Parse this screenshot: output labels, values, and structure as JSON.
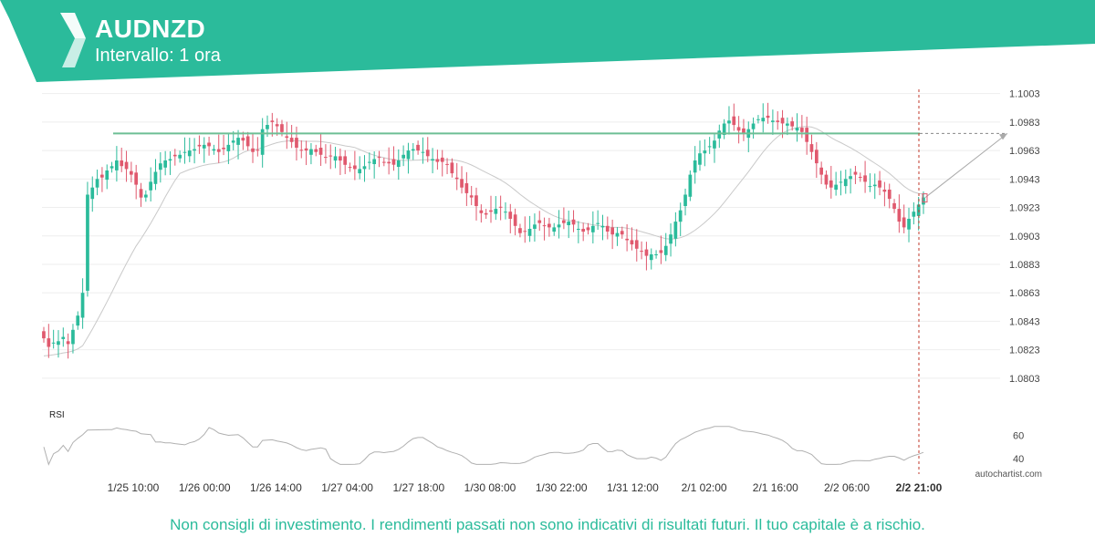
{
  "header": {
    "symbol": "AUDNZD",
    "interval": "Intervallo: 1 ora"
  },
  "colors": {
    "brand": "#2bbb9b",
    "up": "#2bbb9b",
    "down": "#e0596e",
    "resistance": "#6dbf95",
    "ma": "#c9c9c9",
    "rsi": "#b0b0b0"
  },
  "chart_data": {
    "type": "candlestick",
    "symbol": "AUDNZD",
    "yticks": [
      "1.1003",
      "1.0983",
      "1.0963",
      "1.0943",
      "1.0923",
      "1.0903",
      "1.0883",
      "1.0863",
      "1.0843",
      "1.0823",
      "1.0803"
    ],
    "ylim": [
      1.0792,
      1.1006
    ],
    "xticks": [
      "1/25 10:00",
      "1/26 00:00",
      "1/26 14:00",
      "1/27 04:00",
      "1/27 18:00",
      "1/30 08:00",
      "1/30 22:00",
      "1/31 12:00",
      "2/1 02:00",
      "2/1 16:00",
      "2/2 06:00",
      "2/2 21:00"
    ],
    "resistance_level": 1.0975,
    "projection": {
      "from": 1.093,
      "to": 1.0975
    },
    "closes": [
      1.0831,
      1.0825,
      1.0828,
      1.0829,
      1.0832,
      1.0827,
      1.0837,
      1.0847,
      1.0863,
      1.0932,
      1.0937,
      1.0943,
      1.0944,
      1.0949,
      1.0952,
      1.0956,
      1.0952,
      1.095,
      1.0946,
      1.0939,
      1.093,
      1.0932,
      1.0941,
      1.0948,
      1.0954,
      1.0956,
      1.0957,
      1.0959,
      1.096,
      1.0962,
      1.0963,
      1.0964,
      1.0966,
      1.0967,
      1.0966,
      1.0964,
      1.0962,
      1.0964,
      1.0967,
      1.097,
      1.0972,
      1.097,
      1.0966,
      1.0962,
      1.0963,
      1.0978,
      1.0981,
      1.0983,
      1.098,
      1.0976,
      1.0972,
      1.0969,
      1.0965,
      1.0963,
      1.0963,
      1.0964,
      1.0962,
      1.096,
      1.0958,
      1.0959,
      1.0959,
      1.0956,
      1.0953,
      1.0951,
      1.095,
      1.095,
      1.0952,
      1.0955,
      1.0957,
      1.0958,
      1.0955,
      1.0954,
      1.0953,
      1.0956,
      1.096,
      1.0963,
      1.0964,
      1.0963,
      1.0962,
      1.0959,
      1.0957,
      1.0955,
      1.0955,
      1.0953,
      1.0947,
      1.0943,
      1.0937,
      1.0933,
      1.093,
      1.0924,
      1.0919,
      1.0918,
      1.092,
      1.0922,
      1.0923,
      1.092,
      1.0915,
      1.091,
      1.0905,
      1.0906,
      1.0908,
      1.0911,
      1.0912,
      1.091,
      1.0909,
      1.0909,
      1.0911,
      1.0912,
      1.0913,
      1.0911,
      1.0908,
      1.0906,
      1.0907,
      1.091,
      1.0912,
      1.091,
      1.0906,
      1.0904,
      1.0905,
      1.0904,
      1.09,
      1.0897,
      1.0894,
      1.0892,
      1.0889,
      1.089,
      1.089,
      1.0891,
      1.0896,
      1.0904,
      1.0913,
      1.0921,
      1.0932,
      1.0946,
      1.0956,
      1.0961,
      1.0963,
      1.0966,
      1.097,
      1.0977,
      1.0982,
      1.0984,
      1.0981,
      1.0977,
      1.0975,
      1.0978,
      1.0982,
      1.0985,
      1.0986,
      1.0986,
      1.0984,
      1.0983,
      1.0982,
      1.0982,
      1.098,
      1.0979,
      1.0976,
      1.0969,
      1.0962,
      1.0954,
      1.0946,
      1.0939,
      1.0937,
      1.0939,
      1.0941,
      1.0943,
      1.0945,
      1.0946,
      1.0944,
      1.0941,
      1.0938,
      1.0939,
      1.0937,
      1.0934,
      1.0929,
      1.0922,
      1.0913,
      1.0909,
      1.0915,
      1.092,
      1.0925,
      1.093
    ],
    "rsi_label": "RSI",
    "rsi_yticks": [
      "60",
      "40"
    ],
    "rsi_ylim": [
      33,
      72
    ],
    "rsi_last": 45
  },
  "footer": {
    "disclaimer": "Non consigli di investimento. I rendimenti passati non sono indicativi di risultati futuri. Il tuo capitale è a rischio.",
    "brand": "autochartist.com"
  }
}
